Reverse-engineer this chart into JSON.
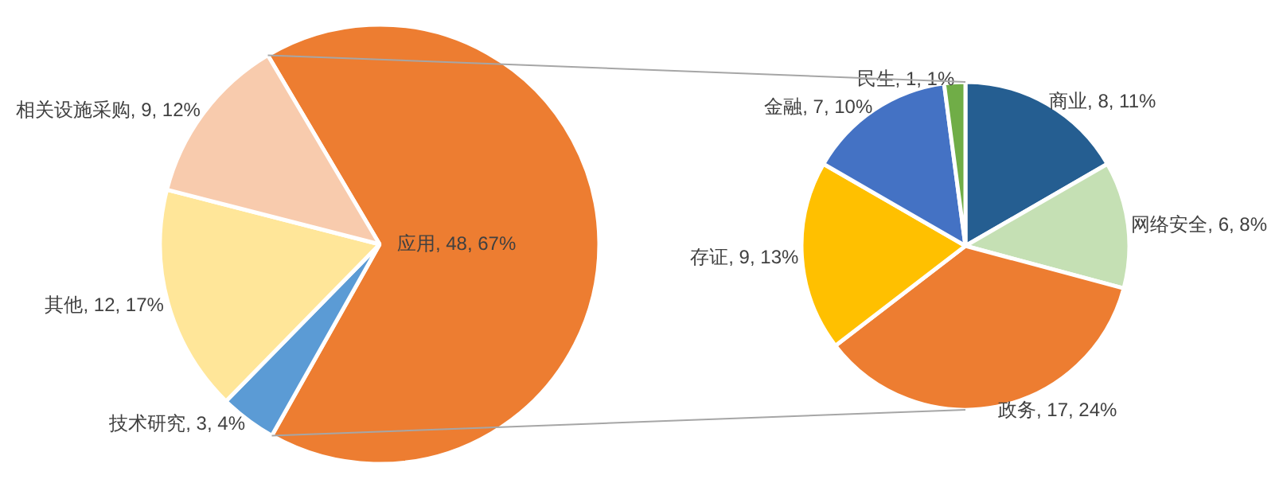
{
  "chart_data": [
    {
      "type": "pie",
      "categories": [
        "应用",
        "技术研究",
        "其他",
        "相关设施采购"
      ],
      "values": [
        48,
        3,
        12,
        9
      ],
      "colors": [
        "#ed7d31",
        "#5b9bd5",
        "#ffe699",
        "#f8cbad"
      ],
      "value_labels": [
        "48, 67%",
        "3, 4%",
        "12, 17%",
        "9, 12%"
      ]
    },
    {
      "type": "pie",
      "categories": [
        "商业",
        "网络安全",
        "政务",
        "存证",
        "金融",
        "民生"
      ],
      "values": [
        8,
        6,
        17,
        9,
        7,
        1
      ],
      "colors": [
        "#255e91",
        "#c5e0b4",
        "#ed7d31",
        "#ffc000",
        "#4472c4",
        "#70ad47"
      ],
      "value_labels": [
        "8, 11%",
        "6, 8%",
        "17, 24%",
        "9, 13%",
        "7, 10%",
        "1, 1%"
      ]
    }
  ]
}
